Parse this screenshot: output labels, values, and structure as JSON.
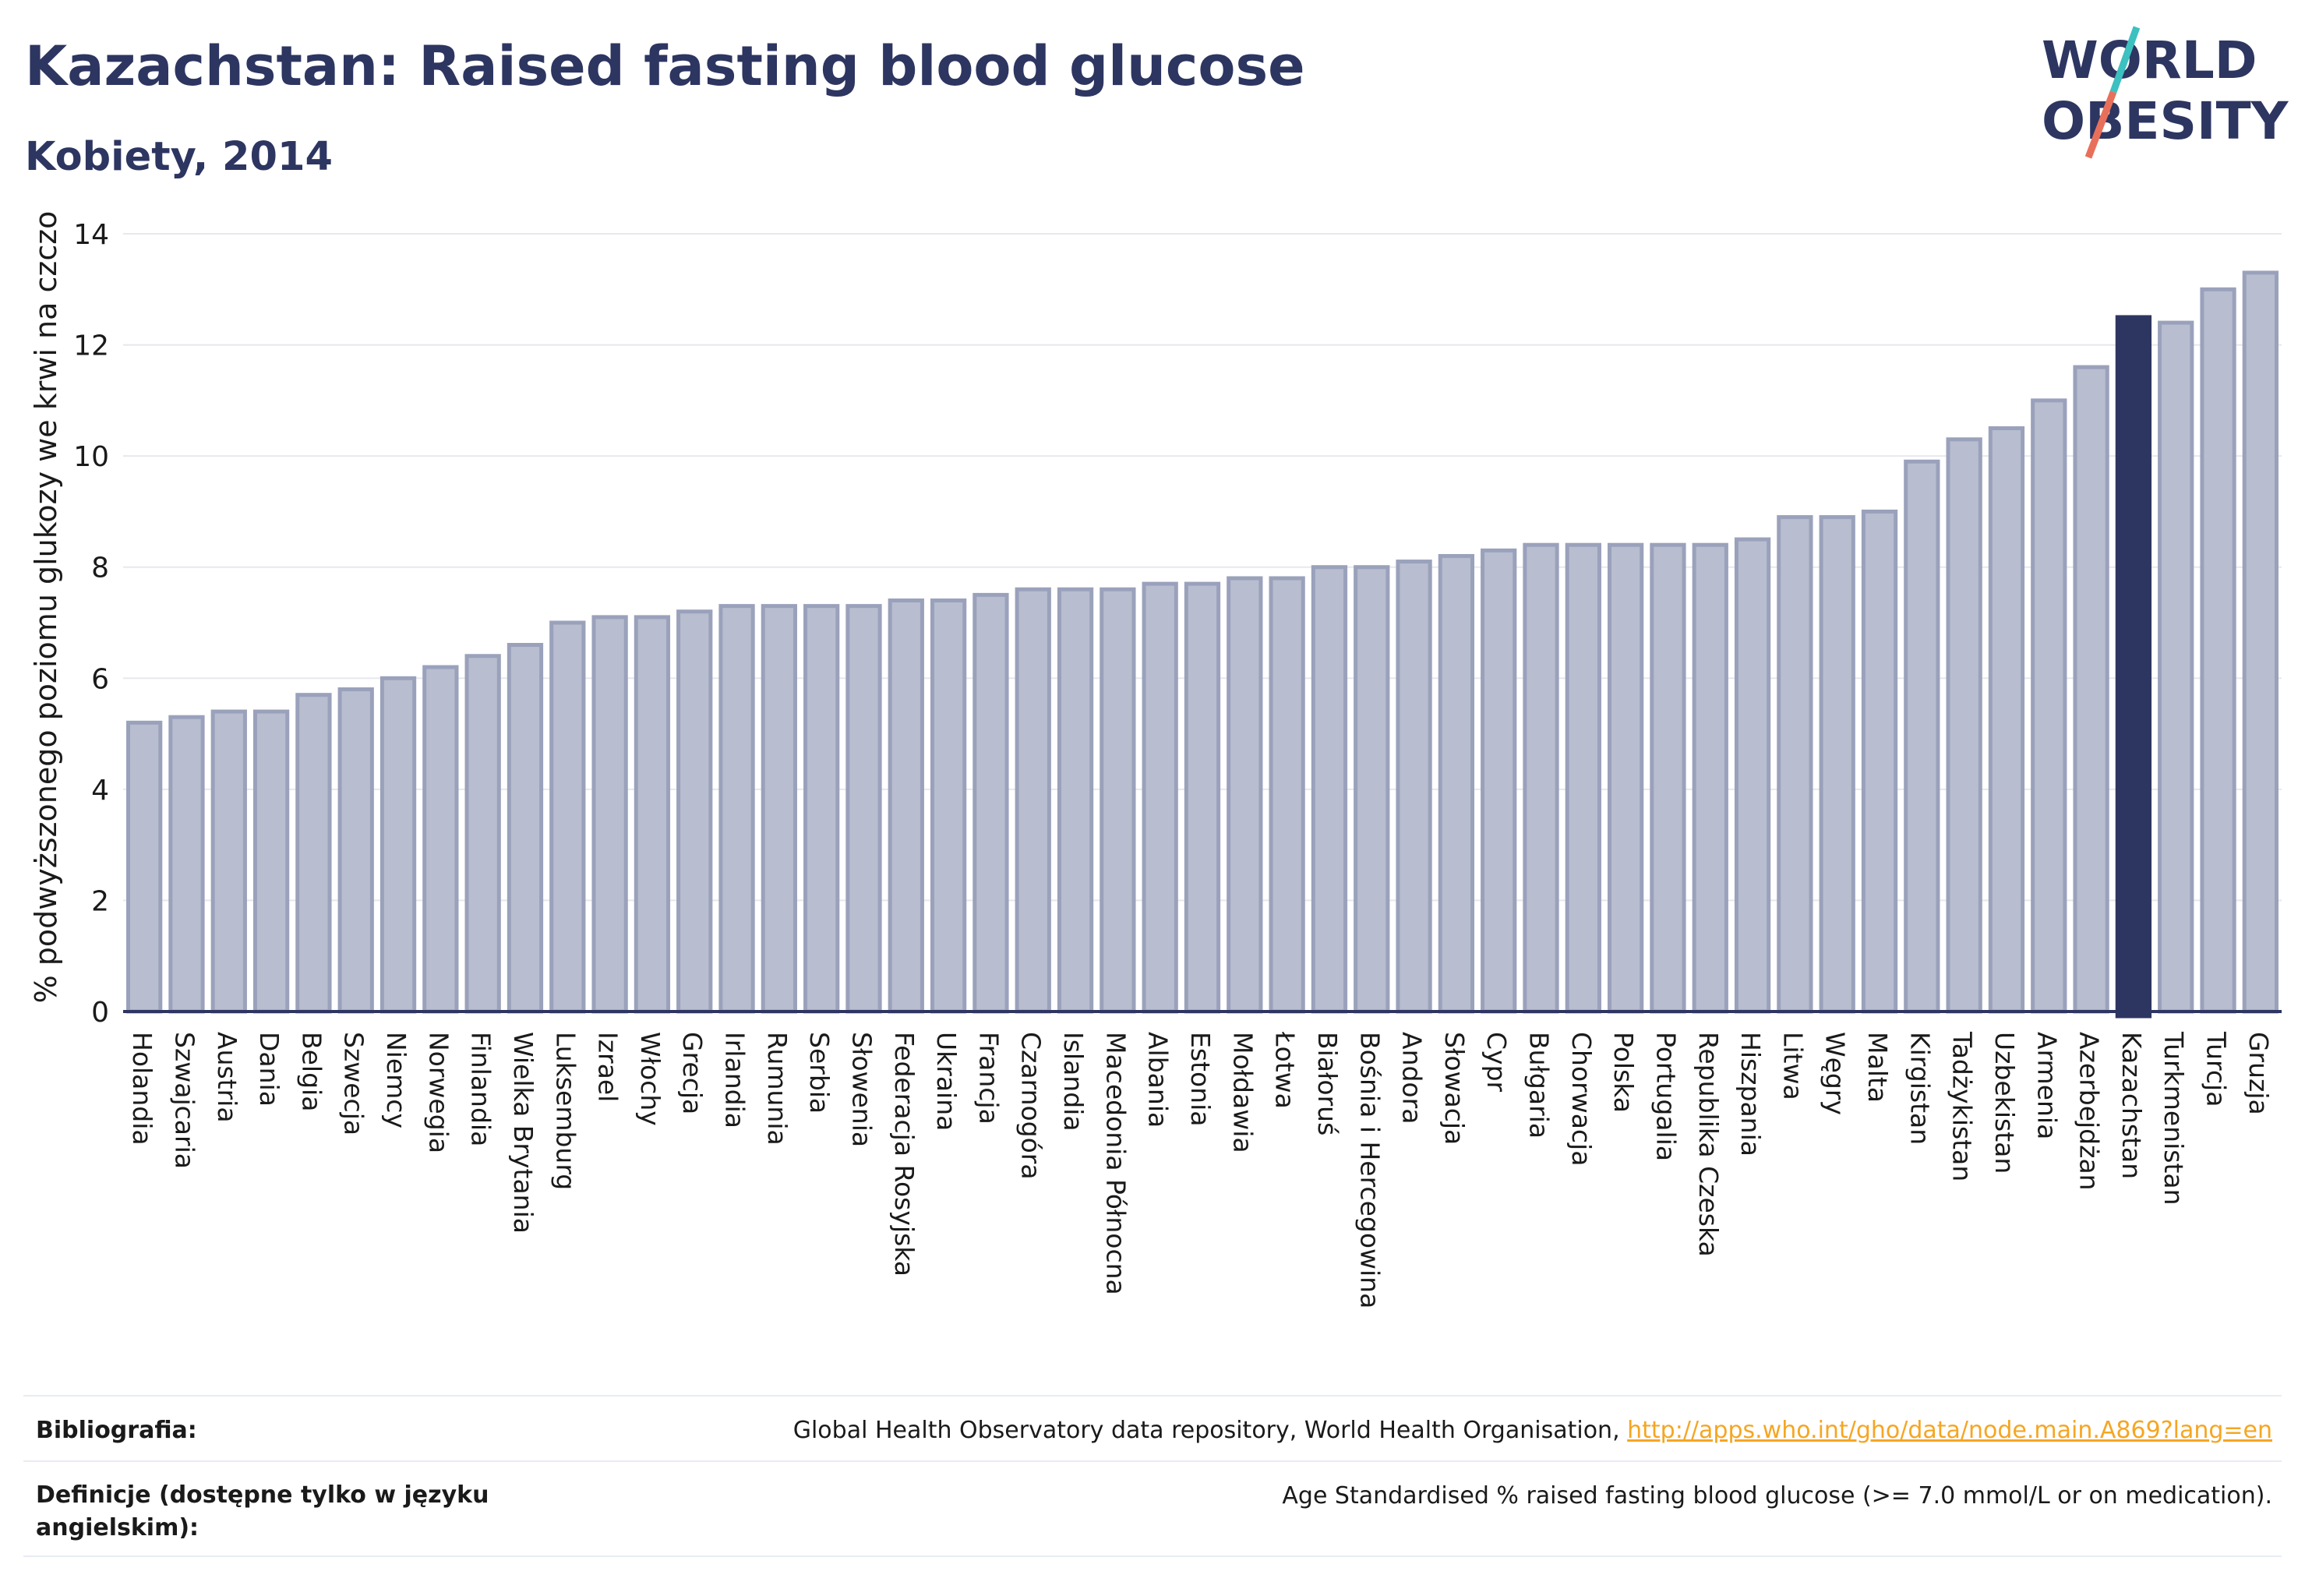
{
  "title": "Kazachstan: Raised fasting blood glucose",
  "subtitle": "Kobiety, 2014",
  "logo": {
    "line1": "WORLD",
    "line2": "OBESITY"
  },
  "colors": {
    "bar": "#b8bdcf",
    "bar_edge": "#9aa1bb",
    "highlight": "#2d3561",
    "text": "#2d3561",
    "link": "#f5a623"
  },
  "chart_data": {
    "type": "bar",
    "ylabel": "% podwyższonego poziomu glukozy we krwi na czczo",
    "ylim": [
      0,
      14
    ],
    "yticks": [
      0,
      2,
      4,
      6,
      8,
      10,
      12,
      14
    ],
    "grid": true,
    "highlight": "Kazachstan",
    "categories": [
      "Holandia",
      "Szwajcaria",
      "Austria",
      "Dania",
      "Belgia",
      "Szwecja",
      "Niemcy",
      "Norwegia",
      "Finlandia",
      "Wielka Brytania",
      "Luksemburg",
      "Izrael",
      "Włochy",
      "Grecja",
      "Irlandia",
      "Rumunia",
      "Serbia",
      "Słowenia",
      "Federacja Rosyjska",
      "Ukraina",
      "Francja",
      "Czarnogóra",
      "Islandia",
      "Macedonia Północna",
      "Albania",
      "Estonia",
      "Mołdawia",
      "Łotwa",
      "Białoruś",
      "Bośnia i Hercegowina",
      "Andora",
      "Słowacja",
      "Cypr",
      "Bułgaria",
      "Chorwacja",
      "Polska",
      "Portugalia",
      "Republika Czeska",
      "Hiszpania",
      "Litwa",
      "Węgry",
      "Malta",
      "Kirgistan",
      "Tadżykistan",
      "Uzbekistan",
      "Armenia",
      "Azerbejdżan",
      "Kazachstan",
      "Turkmenistan",
      "Turcja",
      "Gruzja"
    ],
    "values": [
      5.2,
      5.3,
      5.4,
      5.4,
      5.7,
      5.8,
      6.0,
      6.2,
      6.4,
      6.6,
      7.0,
      7.1,
      7.1,
      7.2,
      7.3,
      7.3,
      7.3,
      7.3,
      7.4,
      7.4,
      7.5,
      7.6,
      7.6,
      7.6,
      7.7,
      7.7,
      7.8,
      7.8,
      8.0,
      8.0,
      8.1,
      8.2,
      8.3,
      8.4,
      8.4,
      8.4,
      8.4,
      8.4,
      8.5,
      8.9,
      8.9,
      9.0,
      9.9,
      10.3,
      10.5,
      11.0,
      11.6,
      12.5,
      12.4,
      13.0,
      13.3
    ]
  },
  "footer": {
    "bibliography_label": "Bibliografia:",
    "bibliography_text": "Global Health Observatory data repository, World Health Organisation, ",
    "bibliography_link": "http://apps.who.int/gho/data/node.main.A869?lang=en",
    "definitions_label": "Definicje (dostępne tylko w języku angielskim):",
    "definitions_text": "Age Standardised % raised fasting blood glucose (>= 7.0 mmol/L or on medication)."
  }
}
